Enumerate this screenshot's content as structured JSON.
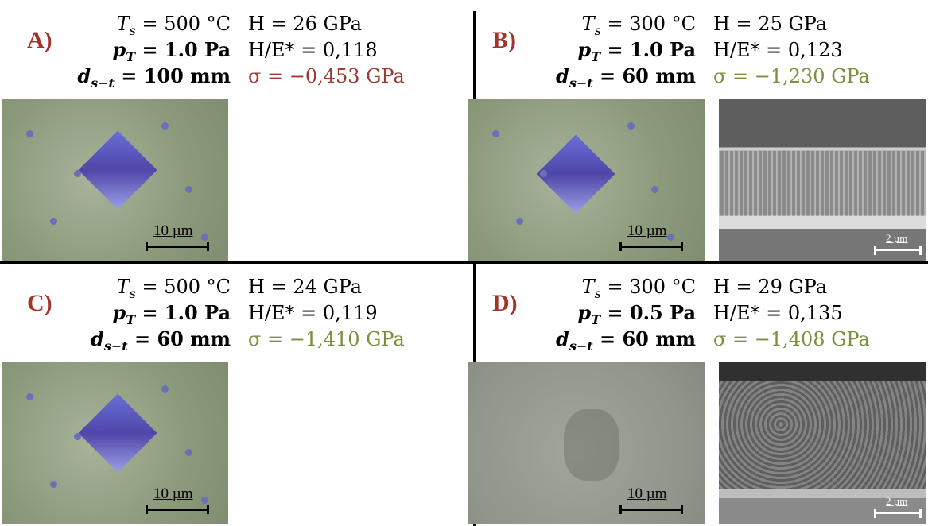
{
  "panels": [
    {
      "label": "A)",
      "temp": {
        "sym": "T",
        "sub": "s",
        "text": "= 500 °C"
      },
      "pressure": {
        "sym": "p",
        "sub": "T",
        "text": "= 1.0 Pa"
      },
      "distance": {
        "sym": "d",
        "sub": "s−t",
        "text": "= 100 mm"
      },
      "hardness": "H = 26 GPa",
      "ratio": "H/E* = 0,118",
      "stress": "σ = −0,453 GPa",
      "scale_bars": [
        "10 µm"
      ]
    },
    {
      "label": "B)",
      "temp": {
        "sym": "T",
        "sub": "s",
        "text": "= 300 °C"
      },
      "pressure": {
        "sym": "p",
        "sub": "T",
        "text": "= 1.0 Pa"
      },
      "distance": {
        "sym": "d",
        "sub": "s−t",
        "text": "= 60 mm"
      },
      "hardness": "H = 25 GPa",
      "ratio": "H/E* = 0,123",
      "stress": "σ = −1,230 GPa",
      "scale_bars": [
        "10 µm",
        "2 µm"
      ]
    },
    {
      "label": "C)",
      "temp": {
        "sym": "T",
        "sub": "s",
        "text": "= 500 °C"
      },
      "pressure": {
        "sym": "p",
        "sub": "T",
        "text": "= 1.0 Pa"
      },
      "distance": {
        "sym": "d",
        "sub": "s−t",
        "text": "= 60 mm"
      },
      "hardness": "H = 24 GPa",
      "ratio": "H/E* = 0,119",
      "stress": "σ = −1,410 GPa",
      "scale_bars": [
        "10 µm"
      ]
    },
    {
      "label": "D)",
      "temp": {
        "sym": "T",
        "sub": "s",
        "text": "= 300 °C"
      },
      "pressure": {
        "sym": "p",
        "sub": "T",
        "text": "= 0.5 Pa"
      },
      "distance": {
        "sym": "d",
        "sub": "s−t",
        "text": "= 60 mm"
      },
      "hardness": "H = 29 GPa",
      "ratio": "H/E* = 0,135",
      "stress": "σ = −1,408 GPa",
      "scale_bars": [
        "10 µm",
        "2 µm"
      ]
    }
  ]
}
